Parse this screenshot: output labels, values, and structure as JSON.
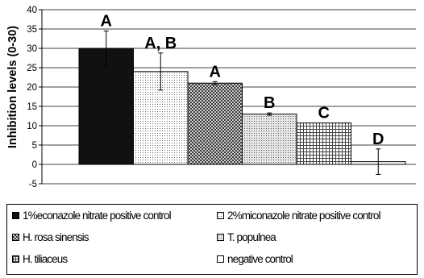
{
  "chart_data": {
    "type": "bar",
    "ylabel": "Inhibition levels (0-30)",
    "ylim": [
      -5,
      40
    ],
    "yticks": [
      -5,
      0,
      5,
      10,
      15,
      20,
      25,
      30,
      35,
      40
    ],
    "grid": true,
    "legend_position": "bottom",
    "categories": [
      "1%econazole nitrate positive control",
      "2%miconazole nitrate positive control",
      "H. rosa sinensis",
      "T. populnea",
      "H. tiliaceus",
      "negative control"
    ],
    "values": [
      30,
      24,
      21,
      13,
      10.7,
      0.7
    ],
    "error": [
      4.5,
      4.8,
      0.4,
      0.3,
      0,
      3.3
    ],
    "annotations": [
      "A",
      "A, B",
      "A",
      "B",
      "C",
      "D"
    ],
    "patterns": [
      "solid-black",
      "fine-dots",
      "dark-crosshatch",
      "light-dots",
      "grid",
      "white"
    ]
  }
}
